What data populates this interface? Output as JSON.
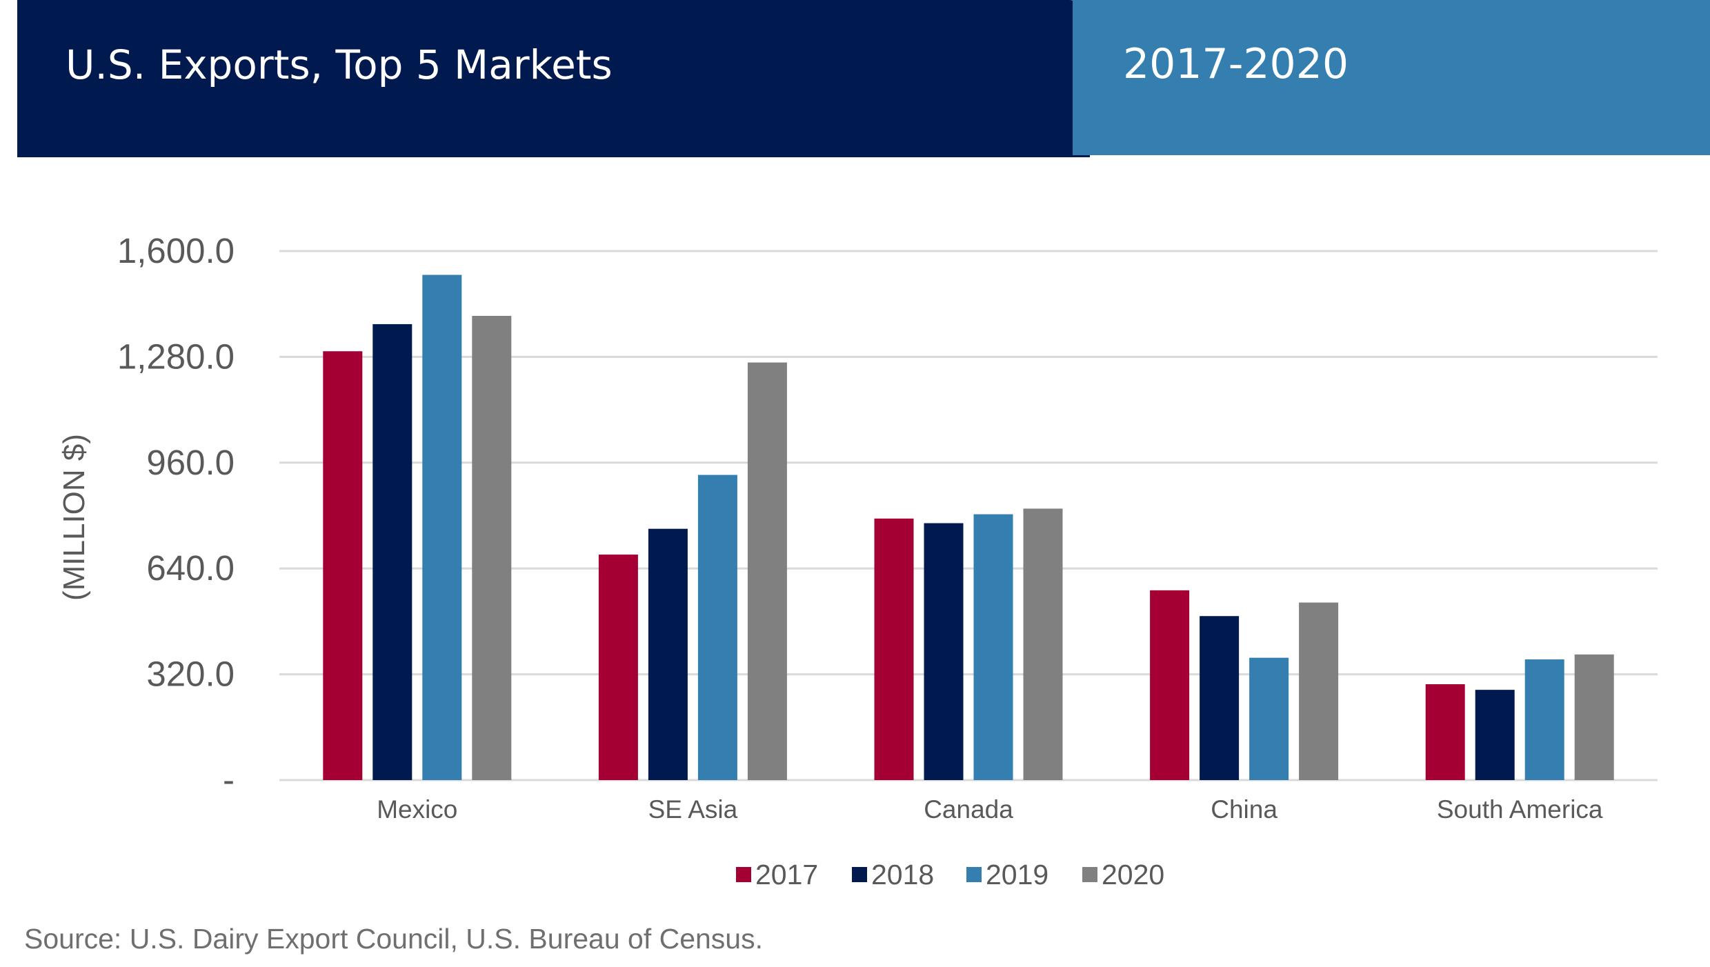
{
  "header": {
    "title": "U.S. Exports, Top 5 Markets",
    "years": "2017-2020"
  },
  "source": "Source: U.S. Dairy Export Council, U.S. Bureau of Census.",
  "colors": {
    "header_dark": "#001a4f",
    "header_light": "#347fb0",
    "gridline": "#d9d9d9",
    "axis_text": "#595959"
  },
  "chart_data": {
    "type": "bar",
    "ylabel": "(MILLION $)",
    "ylim": [
      0,
      1600
    ],
    "yticks": [
      {
        "value": 0,
        "label": "-"
      },
      {
        "value": 320,
        "label": "320.0"
      },
      {
        "value": 640,
        "label": "640.0"
      },
      {
        "value": 960,
        "label": "960.0"
      },
      {
        "value": 1280,
        "label": "1,280.0"
      },
      {
        "value": 1600,
        "label": "1,600.0"
      }
    ],
    "grid": true,
    "legend_position": "bottom",
    "categories": [
      "Mexico",
      "SE Asia",
      "Canada",
      "China",
      "South America"
    ],
    "series": [
      {
        "name": "2017",
        "color": "#a50034",
        "values": [
          1297,
          682,
          791,
          574,
          290
        ]
      },
      {
        "name": "2018",
        "color": "#001a4f",
        "values": [
          1379,
          760,
          777,
          496,
          273
        ]
      },
      {
        "name": "2019",
        "color": "#347fb0",
        "values": [
          1528,
          923,
          804,
          370,
          365
        ]
      },
      {
        "name": "2020",
        "color": "#808080",
        "values": [
          1404,
          1263,
          821,
          537,
          380
        ]
      }
    ]
  }
}
